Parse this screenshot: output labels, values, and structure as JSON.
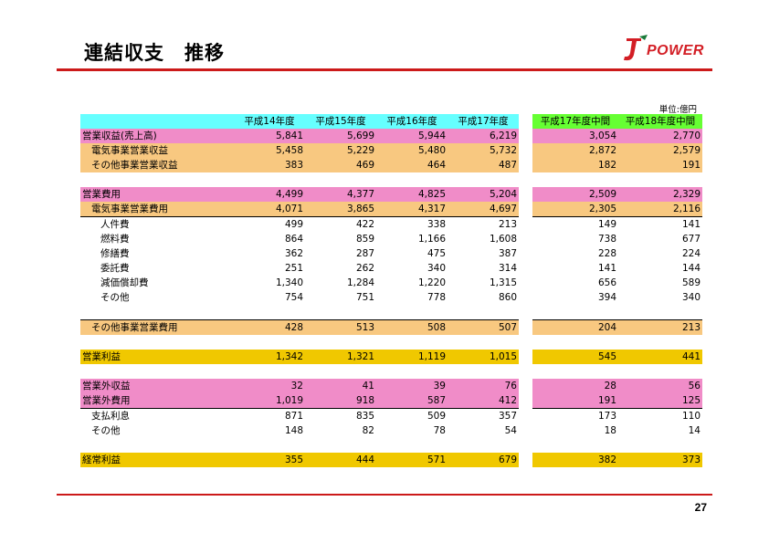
{
  "title": "連結収支　推移",
  "logo_text": "POWER",
  "unit": "単位:億円",
  "page_number": "27",
  "colors": {
    "accent": "#cc1a1a",
    "pink": "#f08cc8",
    "orange": "#f8c880",
    "yellow": "#f0c800",
    "cyan": "#66ffff",
    "green": "#66ff33"
  },
  "headers": {
    "annual": [
      "平成14年度",
      "平成15年度",
      "平成16年度",
      "平成17年度"
    ],
    "interim": [
      "平成17年度中間",
      "平成18年度中間"
    ]
  },
  "rows": [
    {
      "label": "営業収益(売上高)",
      "annual": [
        "5,841",
        "5,699",
        "5,944",
        "6,219"
      ],
      "interim": [
        "3,054",
        "2,770"
      ]
    },
    {
      "label": "電気事業営業収益",
      "annual": [
        "5,458",
        "5,229",
        "5,480",
        "5,732"
      ],
      "interim": [
        "2,872",
        "2,579"
      ]
    },
    {
      "label": "その他事業営業収益",
      "annual": [
        "383",
        "469",
        "464",
        "487"
      ],
      "interim": [
        "182",
        "191"
      ]
    },
    {
      "label": "営業費用",
      "annual": [
        "4,499",
        "4,377",
        "4,825",
        "5,204"
      ],
      "interim": [
        "2,509",
        "2,329"
      ]
    },
    {
      "label": "電気事業営業費用",
      "annual": [
        "4,071",
        "3,865",
        "4,317",
        "4,697"
      ],
      "interim": [
        "2,305",
        "2,116"
      ]
    },
    {
      "label": "人件費",
      "annual": [
        "499",
        "422",
        "338",
        "213"
      ],
      "interim": [
        "149",
        "141"
      ]
    },
    {
      "label": "燃料費",
      "annual": [
        "864",
        "859",
        "1,166",
        "1,608"
      ],
      "interim": [
        "738",
        "677"
      ]
    },
    {
      "label": "修繕費",
      "annual": [
        "362",
        "287",
        "475",
        "387"
      ],
      "interim": [
        "228",
        "224"
      ]
    },
    {
      "label": "委託費",
      "annual": [
        "251",
        "262",
        "340",
        "314"
      ],
      "interim": [
        "141",
        "144"
      ]
    },
    {
      "label": "減価償却費",
      "annual": [
        "1,340",
        "1,284",
        "1,220",
        "1,315"
      ],
      "interim": [
        "656",
        "589"
      ]
    },
    {
      "label": "その他",
      "annual": [
        "754",
        "751",
        "778",
        "860"
      ],
      "interim": [
        "394",
        "340"
      ]
    },
    {
      "label": "その他事業営業費用",
      "annual": [
        "428",
        "513",
        "508",
        "507"
      ],
      "interim": [
        "204",
        "213"
      ]
    },
    {
      "label": "営業利益",
      "annual": [
        "1,342",
        "1,321",
        "1,119",
        "1,015"
      ],
      "interim": [
        "545",
        "441"
      ]
    },
    {
      "label": "営業外収益",
      "annual": [
        "32",
        "41",
        "39",
        "76"
      ],
      "interim": [
        "28",
        "56"
      ]
    },
    {
      "label": "営業外費用",
      "annual": [
        "1,019",
        "918",
        "587",
        "412"
      ],
      "interim": [
        "191",
        "125"
      ]
    },
    {
      "label": "支払利息",
      "annual": [
        "871",
        "835",
        "509",
        "357"
      ],
      "interim": [
        "173",
        "110"
      ]
    },
    {
      "label": "その他",
      "annual": [
        "148",
        "82",
        "78",
        "54"
      ],
      "interim": [
        "18",
        "14"
      ]
    },
    {
      "label": "経常利益",
      "annual": [
        "355",
        "444",
        "571",
        "679"
      ],
      "interim": [
        "382",
        "373"
      ]
    }
  ]
}
